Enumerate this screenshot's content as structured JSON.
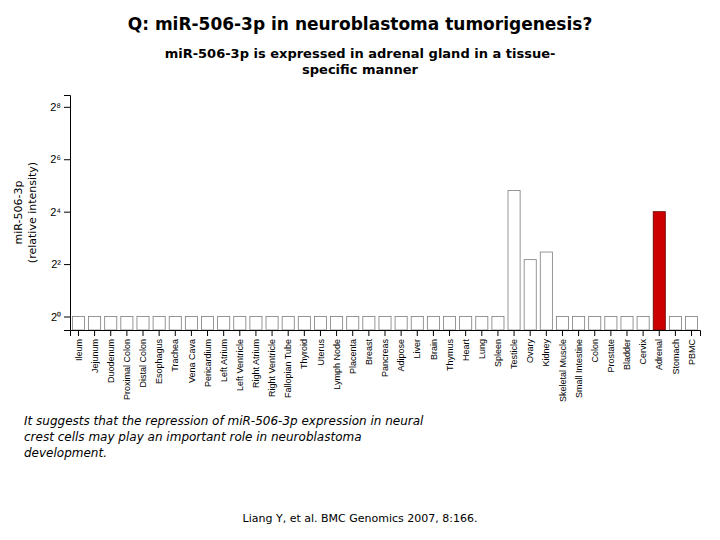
{
  "chart_data": {
    "type": "bar",
    "title": "Q: miR-506-3p in neuroblastoma tumorigenesis?",
    "subtitle": "miR-506-3p is expressed in adrenal gland in a tissue-\nspecific manner",
    "ylabel": "miR-506-3p\n(relative intensity)",
    "annotations": [
      "It suggests that the repression of miR-506-3p expression in neural\ncrest cells may play an important role in neuroblastoma\ndevelopment.",
      "Liang Y,  et al. BMC Genomics 2007, 8:166."
    ],
    "categories": [
      "Ileum",
      "Jejunum",
      "Duodenum",
      "Proximal Colon",
      "Distal Colon",
      "Esophagus",
      "Trachea",
      "Vena Cava",
      "Pericardium",
      "Left Atrium",
      "Left Ventricle",
      "Right Atrium",
      "Right Ventricle",
      "Fallopian Tube",
      "Thyroid",
      "Uterus",
      "Lymph Node",
      "Placenta",
      "Breast",
      "Pancreas",
      "Adipose",
      "Liver",
      "Brain",
      "Thymus",
      "Heart",
      "Lung",
      "Spleen",
      "Testicle",
      "Ovary",
      "Kidney",
      "Skeletal Muscle",
      "Small Intestine",
      "Colon",
      "Prostate",
      "Bladder",
      "Cervix",
      "Adrenal",
      "Stomach",
      "PBMC"
    ],
    "values": [
      1.0,
      1.0,
      1.0,
      1.0,
      1.0,
      1.0,
      1.0,
      1.0,
      1.0,
      1.0,
      1.0,
      1.0,
      1.0,
      1.0,
      1.0,
      1.0,
      1.0,
      1.0,
      1.0,
      1.0,
      1.0,
      1.0,
      1.0,
      1.0,
      1.0,
      1.0,
      1.0,
      28.0,
      4.5,
      5.5,
      1.0,
      1.0,
      1.0,
      1.0,
      1.0,
      1.0,
      16.0,
      1.0,
      1.0
    ],
    "colors": [
      "white",
      "white",
      "white",
      "white",
      "white",
      "white",
      "white",
      "white",
      "white",
      "white",
      "white",
      "white",
      "white",
      "white",
      "white",
      "white",
      "white",
      "white",
      "white",
      "white",
      "white",
      "white",
      "white",
      "white",
      "white",
      "white",
      "white",
      "white",
      "white",
      "white",
      "white",
      "white",
      "white",
      "white",
      "white",
      "white",
      "#cc0000",
      "white",
      "white"
    ],
    "log": "y",
    "ylim": [
      0.7,
      350
    ],
    "yticks": [
      {
        "value": 1,
        "label": "2⁰"
      },
      {
        "value": 4,
        "label": "2²"
      },
      {
        "value": 16,
        "label": "2⁴"
      },
      {
        "value": 64,
        "label": "2⁶"
      },
      {
        "value": 256,
        "label": "2⁸"
      }
    ],
    "grid": false
  }
}
